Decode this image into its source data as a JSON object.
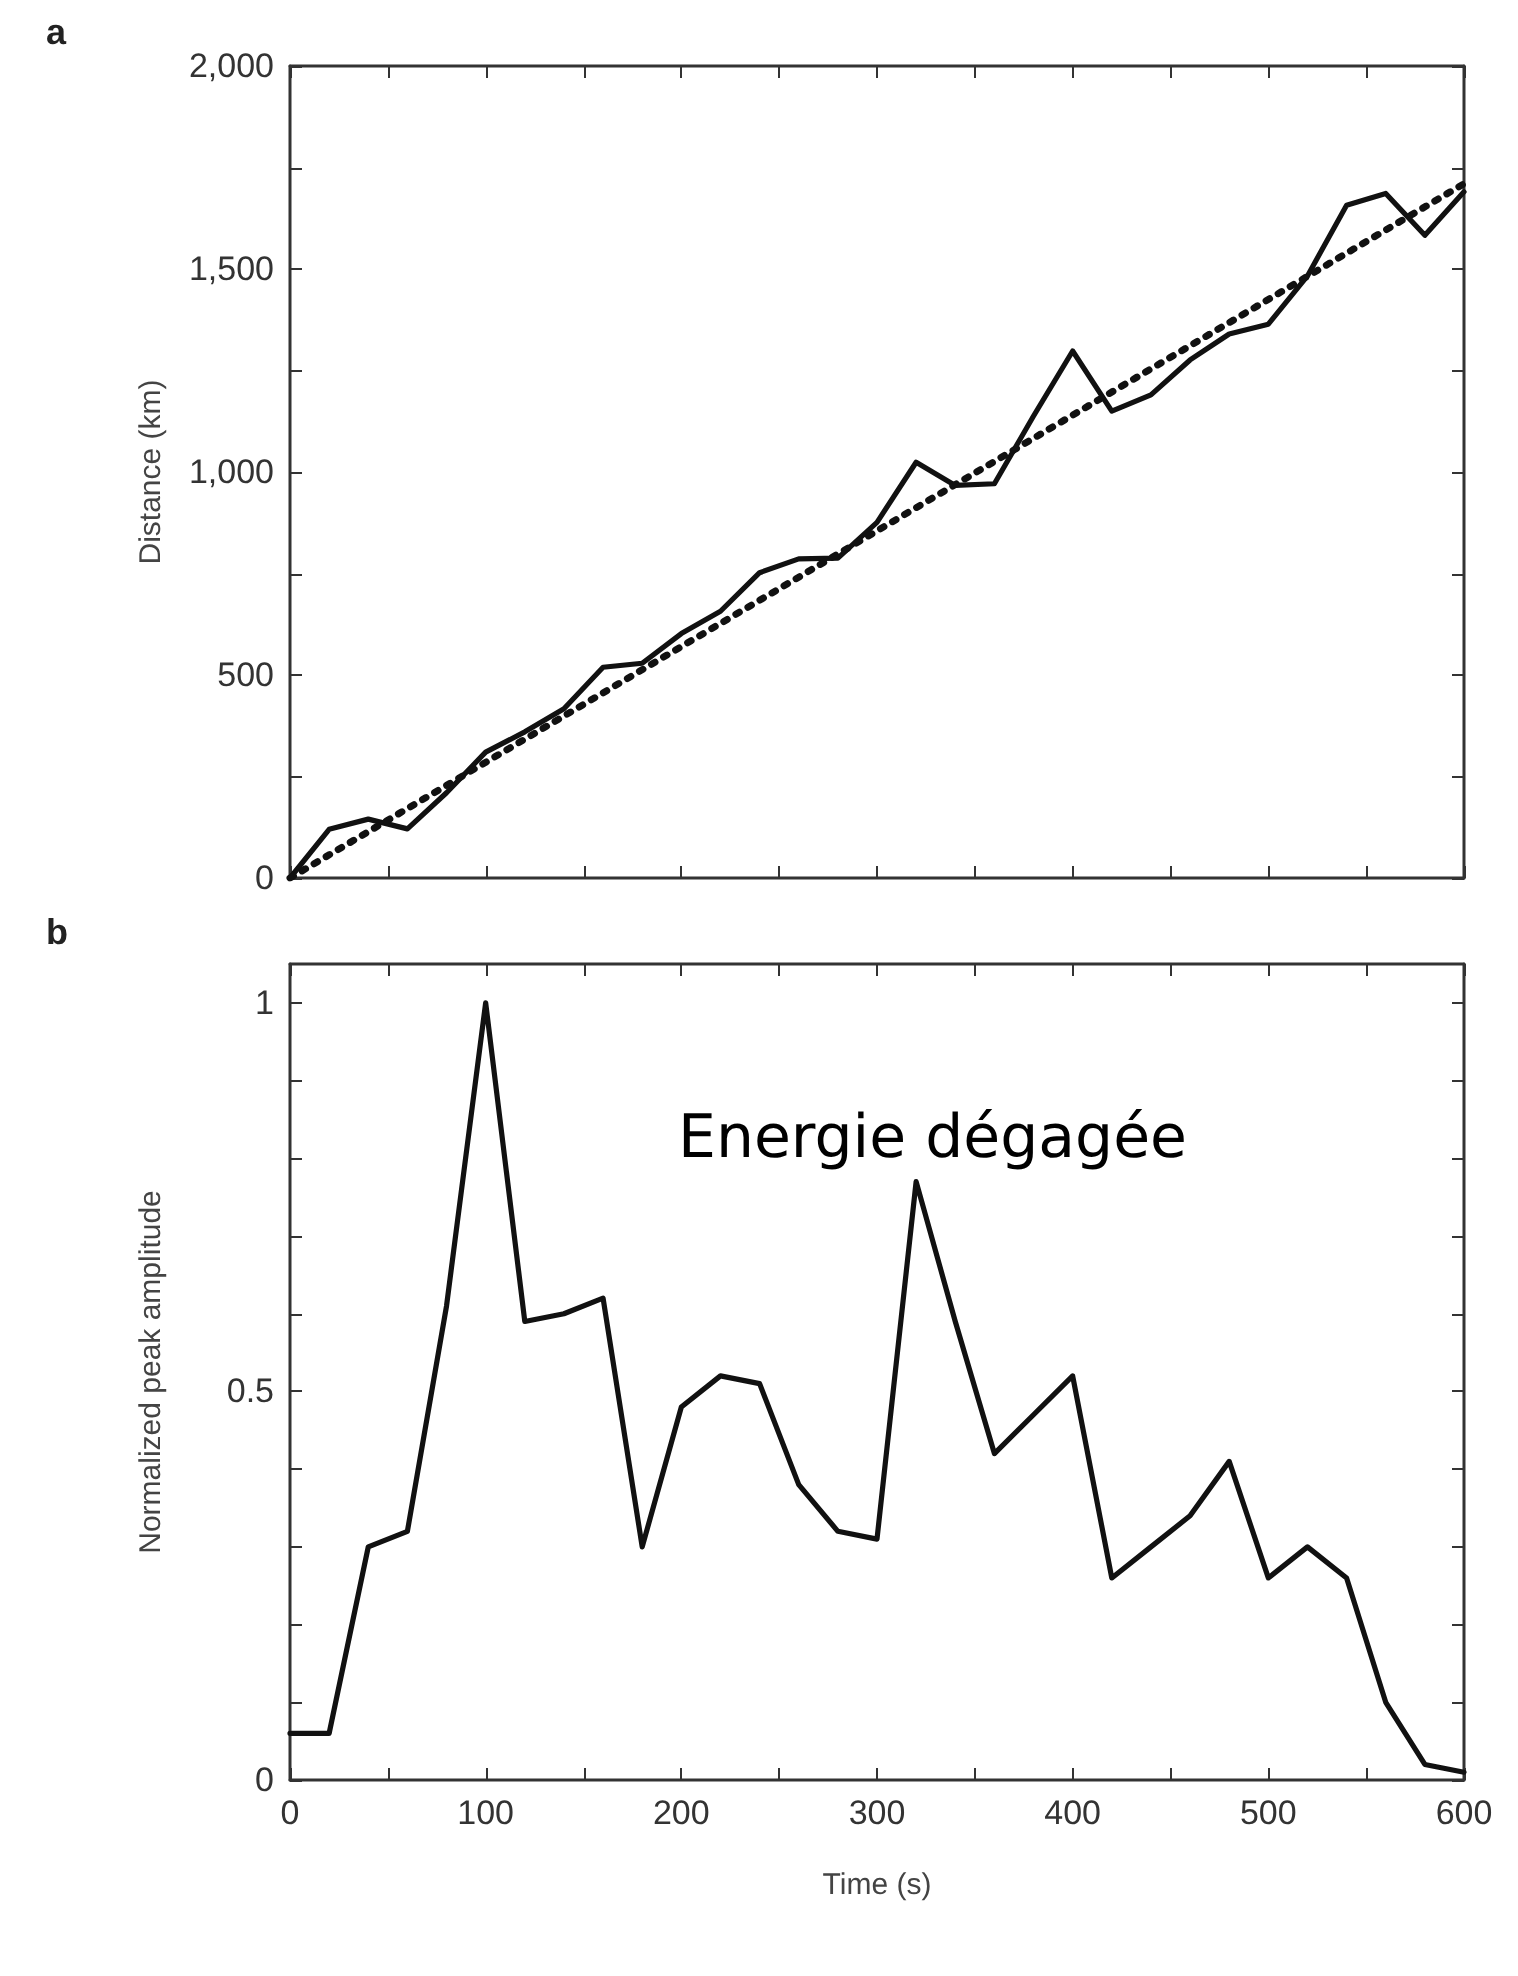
{
  "chart_data": [
    {
      "type": "line",
      "title": "a",
      "ylabel": "Distance (km)",
      "xlim": [
        0,
        600
      ],
      "ylim": [
        0,
        2000
      ],
      "xticks": [
        {
          "value": 0,
          "label": null
        },
        {
          "value": 50,
          "label": null
        },
        {
          "value": 100,
          "label": null
        },
        {
          "value": 150,
          "label": null
        },
        {
          "value": 200,
          "label": null
        },
        {
          "value": 250,
          "label": null
        },
        {
          "value": 300,
          "label": null
        },
        {
          "value": 350,
          "label": null
        },
        {
          "value": 400,
          "label": null
        },
        {
          "value": 450,
          "label": null
        },
        {
          "value": 500,
          "label": null
        },
        {
          "value": 550,
          "label": null
        },
        {
          "value": 600,
          "label": null
        }
      ],
      "yticks": [
        {
          "value": 0,
          "label": "0"
        },
        {
          "value": 250,
          "label": null
        },
        {
          "value": 500,
          "label": "500"
        },
        {
          "value": 750,
          "label": null
        },
        {
          "value": 1000,
          "label": "1,000"
        },
        {
          "value": 1250,
          "label": null
        },
        {
          "value": 1500,
          "label": "1,500"
        },
        {
          "value": 1750,
          "label": null
        },
        {
          "value": 2000,
          "label": "2,000"
        }
      ],
      "tick_labels": "y",
      "grid": false,
      "marker": "none",
      "series": [
        {
          "color": "#111111",
          "line_style": "solid",
          "x": [
            0,
            20,
            40,
            60,
            80,
            100,
            120,
            140,
            160,
            180,
            200,
            220,
            240,
            260,
            280,
            300,
            320,
            340,
            360,
            380,
            400,
            420,
            440,
            460,
            480,
            500,
            520,
            540,
            560,
            580,
            600
          ],
          "values": [
            0,
            120,
            145,
            121,
            210,
            310,
            360,
            417,
            519,
            529,
            602,
            657,
            752,
            786,
            788,
            876,
            1024,
            967,
            971,
            1138,
            1298,
            1150,
            1190,
            1276,
            1340,
            1364,
            1483,
            1657,
            1686,
            1583,
            1690
          ]
        },
        {
          "color": "#111111",
          "line_style": "dotted",
          "x": [
            0,
            600
          ],
          "values": [
            0,
            1710
          ]
        }
      ]
    },
    {
      "type": "line",
      "title": "b",
      "xlabel": "Time (s)",
      "ylabel": "Normalized peak amplitude",
      "xlim": [
        0,
        600
      ],
      "ylim": [
        0,
        1.05
      ],
      "xticks": [
        0,
        {
          "value": 50,
          "label": null
        },
        100,
        {
          "value": 150,
          "label": null
        },
        200,
        {
          "value": 250,
          "label": null
        },
        300,
        {
          "value": 350,
          "label": null
        },
        400,
        {
          "value": 450,
          "label": null
        },
        500,
        {
          "value": 550,
          "label": null
        },
        600
      ],
      "yticks": [
        0,
        {
          "value": 0.1,
          "label": null
        },
        {
          "value": 0.2,
          "label": null
        },
        {
          "value": 0.3,
          "label": null
        },
        {
          "value": 0.4,
          "label": null
        },
        0.5,
        {
          "value": 0.6,
          "label": null
        },
        {
          "value": 0.7,
          "label": null
        },
        {
          "value": 0.8,
          "label": null
        },
        {
          "value": 0.9,
          "label": null
        },
        1
      ],
      "grid": false,
      "marker": "none",
      "line_style": "solid",
      "annotations": [
        "Energie dégagée"
      ],
      "series": [
        {
          "color": "#111111",
          "x": [
            0,
            20,
            40,
            60,
            80,
            100,
            120,
            140,
            160,
            180,
            200,
            220,
            240,
            260,
            280,
            300,
            320,
            340,
            360,
            380,
            400,
            420,
            440,
            460,
            480,
            500,
            520,
            540,
            560,
            580,
            600
          ],
          "values": [
            0.06,
            0.06,
            0.3,
            0.32,
            0.61,
            1.0,
            0.59,
            0.6,
            0.62,
            0.3,
            0.48,
            0.52,
            0.51,
            0.38,
            0.32,
            0.31,
            0.77,
            0.59,
            0.42,
            0.47,
            0.52,
            0.26,
            0.3,
            0.34,
            0.41,
            0.26,
            0.3,
            0.26,
            0.1,
            0.02,
            0.01
          ]
        }
      ]
    }
  ]
}
